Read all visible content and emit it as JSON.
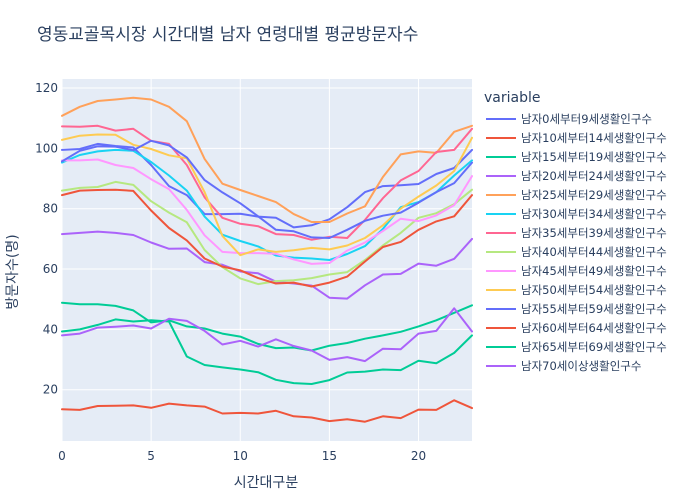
{
  "chart_data": {
    "type": "line",
    "title": "영동교골목시장 시간대별 남자 연령대별 평균방문자수",
    "xlabel": "시간대구분",
    "ylabel": "방문자수(명)",
    "legend_title": "variable",
    "legend_position": "right",
    "grid": true,
    "xlim": [
      0,
      23
    ],
    "ylim": [
      3,
      123
    ],
    "xticks": [
      0,
      5,
      10,
      15,
      20
    ],
    "yticks": [
      20,
      40,
      60,
      80,
      100,
      120
    ],
    "x": [
      0,
      1,
      2,
      3,
      4,
      5,
      6,
      7,
      8,
      9,
      10,
      11,
      12,
      13,
      14,
      15,
      16,
      17,
      18,
      19,
      20,
      21,
      22,
      23
    ],
    "series": [
      {
        "name": "남자0세부터9세생활인구수",
        "color": "#636efa",
        "values": [
          99.5,
          99.8,
          101.5,
          100.8,
          100.3,
          94.5,
          87.5,
          84.5,
          78.2,
          78.2,
          78.3,
          77.4,
          77.0,
          73.8,
          74.5,
          76.5,
          80.5,
          85.5,
          87.5,
          87.8,
          88.2,
          91.5,
          93.5,
          99.5
        ]
      },
      {
        "name": "남자10세부터14세생활인구수",
        "color": "#ef553b",
        "values": [
          13.5,
          13.3,
          14.6,
          14.7,
          14.8,
          14.0,
          15.4,
          14.8,
          14.4,
          12.1,
          12.3,
          12.1,
          13.0,
          11.2,
          10.8,
          9.6,
          10.2,
          9.4,
          11.2,
          10.6,
          13.4,
          13.3,
          16.5,
          13.9
        ]
      },
      {
        "name": "남자15세부터19세생활인구수",
        "color": "#00cc96",
        "values": [
          39.3,
          40.0,
          41.5,
          43.3,
          42.6,
          43.0,
          42.6,
          31.0,
          28.2,
          27.4,
          26.7,
          25.8,
          23.3,
          22.2,
          21.9,
          23.2,
          25.7,
          26.0,
          26.7,
          26.5,
          29.6,
          28.8,
          32.2,
          38.0
        ]
      },
      {
        "name": "남자20세부터24세생활인구수",
        "color": "#ab63fa",
        "values": [
          71.6,
          72.0,
          72.4,
          72.0,
          71.3,
          68.8,
          66.7,
          66.8,
          62.3,
          61.4,
          59.2,
          58.6,
          55.8,
          55.2,
          54.5,
          50.5,
          50.2,
          54.6,
          58.2,
          58.4,
          61.8,
          61.1,
          63.4,
          70.0
        ]
      },
      {
        "name": "남자25세부터29세생활인구수",
        "color": "#ffa15a",
        "values": [
          110.8,
          113.8,
          115.7,
          116.2,
          116.8,
          116.2,
          113.8,
          109.0,
          96.5,
          88.3,
          86.2,
          84.2,
          82.2,
          78.2,
          75.6,
          75.6,
          78.4,
          80.8,
          90.5,
          98.0,
          99.0,
          98.5,
          105.5,
          107.5
        ]
      },
      {
        "name": "남자30세부터34세생활인구수",
        "color": "#19d3f3",
        "values": [
          95.3,
          97.8,
          99.0,
          99.5,
          99.2,
          95.5,
          91.0,
          86.0,
          77.4,
          71.4,
          69.3,
          67.5,
          64.5,
          63.8,
          63.5,
          63.0,
          65.0,
          67.6,
          73.3,
          80.5,
          82.2,
          85.5,
          91.0,
          96.0
        ]
      },
      {
        "name": "남자35세부터39세생활인구수",
        "color": "#ff6692",
        "values": [
          107.3,
          107.2,
          107.5,
          105.9,
          106.5,
          102.5,
          101.5,
          94.5,
          83.8,
          77.0,
          75.0,
          74.2,
          71.6,
          71.3,
          69.7,
          70.7,
          70.3,
          76.3,
          83.5,
          89.4,
          92.5,
          98.8,
          99.5,
          106.5
        ]
      },
      {
        "name": "남자40세부터44세생활인구수",
        "color": "#b6e880",
        "values": [
          86.0,
          86.9,
          87.2,
          88.9,
          87.9,
          82.5,
          78.7,
          75.5,
          66.3,
          60.6,
          56.9,
          55.0,
          56.0,
          56.3,
          57.0,
          58.2,
          59.0,
          63.0,
          67.8,
          72.0,
          77.0,
          78.5,
          81.5,
          86.3
        ]
      },
      {
        "name": "남자45세부터49세생활인구수",
        "color": "#ff97ff",
        "values": [
          96.0,
          96.0,
          96.3,
          94.5,
          93.5,
          89.8,
          86.5,
          79.6,
          71.2,
          65.7,
          65.3,
          65.3,
          65.1,
          63.2,
          61.7,
          62.0,
          66.1,
          68.8,
          72.6,
          76.7,
          75.9,
          77.8,
          81.2,
          90.8
        ]
      },
      {
        "name": "남자50세부터54세생활인구수",
        "color": "#fecb52",
        "values": [
          102.8,
          104.2,
          104.6,
          104.5,
          101.2,
          99.8,
          97.7,
          96.7,
          85.5,
          71.0,
          64.6,
          66.5,
          65.7,
          66.2,
          67.0,
          66.5,
          67.8,
          70.3,
          74.5,
          80.0,
          84.0,
          87.7,
          92.5,
          103.5
        ]
      },
      {
        "name": "남자55세부터59세생활인구수",
        "color": "#636efa",
        "values": [
          95.7,
          99.2,
          100.7,
          100.6,
          99.4,
          102.5,
          101.0,
          97.0,
          89.5,
          85.4,
          81.8,
          77.5,
          73.0,
          72.5,
          70.5,
          70.3,
          73.0,
          76.0,
          77.7,
          78.7,
          82.0,
          85.5,
          88.5,
          95.3
        ]
      },
      {
        "name": "남자60세부터64세생활인구수",
        "color": "#ef553b",
        "values": [
          84.5,
          86.0,
          86.2,
          86.3,
          85.9,
          79.4,
          73.6,
          69.5,
          63.5,
          60.8,
          59.6,
          57.0,
          55.2,
          55.5,
          54.2,
          55.5,
          57.5,
          62.5,
          67.3,
          69.0,
          73.0,
          75.8,
          77.5,
          84.5
        ]
      },
      {
        "name": "남자65세부터69세생활인구수",
        "color": "#00cc96",
        "values": [
          48.8,
          48.3,
          48.3,
          47.8,
          46.3,
          42.3,
          43.0,
          41.0,
          40.3,
          38.6,
          37.6,
          35.2,
          33.8,
          34.0,
          33.0,
          34.6,
          35.5,
          36.9,
          38.0,
          39.2,
          41.0,
          43.0,
          45.5,
          48.0
        ]
      },
      {
        "name": "남자70세이상생활인구수",
        "color": "#ab63fa",
        "values": [
          38.0,
          38.6,
          40.6,
          40.9,
          41.3,
          40.3,
          43.5,
          42.8,
          39.5,
          35.0,
          36.2,
          34.3,
          36.7,
          34.5,
          33.0,
          29.9,
          30.8,
          29.5,
          33.6,
          33.4,
          38.6,
          39.5,
          47.0,
          39.3
        ]
      }
    ]
  }
}
